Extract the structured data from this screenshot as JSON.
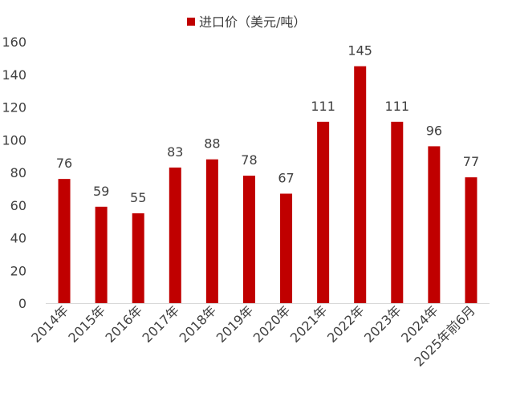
{
  "chart_data": {
    "type": "bar",
    "categories": [
      "2014年",
      "2015年",
      "2016年",
      "2017年",
      "2018年",
      "2019年",
      "2020年",
      "2021年",
      "2022年",
      "2023年",
      "2024年",
      "2025年前6月"
    ],
    "series": [
      {
        "name": "进口价（美元/吨）",
        "values": [
          76,
          59,
          55,
          83,
          88,
          78,
          67,
          111,
          145,
          111,
          96,
          77
        ],
        "color": "#C00000"
      }
    ],
    "ylim": [
      0,
      160
    ],
    "yticks": [
      0,
      20,
      40,
      60,
      80,
      100,
      120,
      140,
      160
    ],
    "legend_position": "top",
    "grid": false,
    "data_labels": true
  }
}
